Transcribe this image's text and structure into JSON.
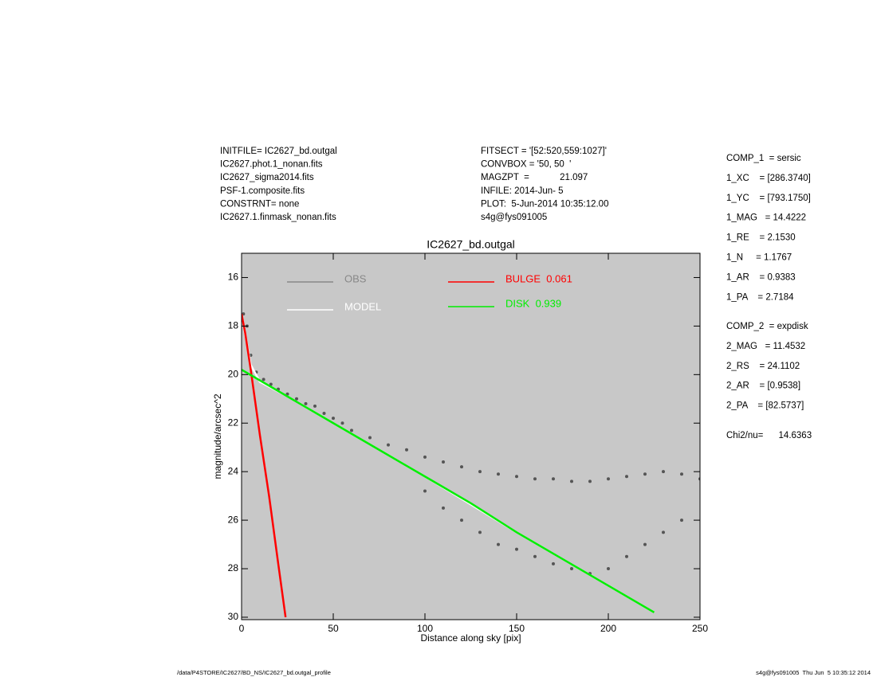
{
  "header": {
    "left": [
      "INITFILE= IC2627_bd.outgal",
      "IC2627.phot.1_nonan.fits",
      "IC2627_sigma2014.fits",
      "PSF-1.composite.fits",
      "CONSTRNT= none",
      "IC2627.1.finmask_nonan.fits"
    ],
    "middle": [
      "FITSECT = '[52:520,559:1027]'",
      "CONVBOX = '50, 50  '",
      "MAGZPT  =            21.097",
      "INFILE: 2014-Jun- 5",
      "PLOT:  5-Jun-2014 10:35:12.00",
      "s4g@fys091005"
    ]
  },
  "params": {
    "comp1": [
      "COMP_1  = sersic",
      "1_XC    = [286.3740]",
      "1_YC    = [793.1750]",
      "1_MAG   = 14.4222",
      "1_RE    = 2.1530",
      "1_N     = 1.1767",
      "1_AR    = 0.9383",
      "1_PA    = 2.7184"
    ],
    "comp2": [
      "COMP_2  = expdisk",
      "2_MAG   = 11.4532",
      "2_RS    = 24.1102",
      "2_AR    = [0.9538]",
      "2_PA    = [82.5737]"
    ],
    "chi2": "Chi2/nu=      14.6363"
  },
  "footer": {
    "left": "/data/P4STORE/IC2627/BD_NS/IC2627_bd.outgal_profile",
    "right": "s4g@fys091005  Thu Jun  5 10:35:12 2014"
  },
  "chart_data": {
    "type": "scatter",
    "title": "IC2627_bd.outgal",
    "x_label": "Distance along sky [pix]",
    "y_label": "magnitude/arcsec^2",
    "xlim": [
      0,
      250
    ],
    "ylim": [
      15,
      30.1
    ],
    "y_inverted": true,
    "xticks": [
      0,
      50,
      100,
      150,
      200,
      250
    ],
    "yticks": [
      16,
      18,
      20,
      22,
      24,
      26,
      28,
      30
    ],
    "background": "#c8c8c8",
    "series": [
      {
        "name": "OBS",
        "color": "#555555",
        "mode": "markers",
        "x": [
          1,
          3,
          5,
          8,
          12,
          16,
          20,
          25,
          30,
          35,
          40,
          45,
          50,
          55,
          60,
          70,
          80,
          90,
          100,
          110,
          120,
          130,
          140,
          150,
          160,
          170,
          180,
          190,
          200,
          210,
          220,
          230,
          240,
          250,
          100,
          110,
          120,
          130,
          140,
          150,
          160,
          170,
          180,
          190,
          200,
          210,
          220,
          230,
          240
        ],
        "values": [
          17.5,
          18.0,
          19.2,
          19.9,
          20.2,
          20.4,
          20.6,
          20.8,
          21.0,
          21.2,
          21.3,
          21.6,
          21.8,
          22.0,
          22.3,
          22.6,
          22.9,
          23.1,
          23.4,
          23.6,
          23.8,
          24.0,
          24.1,
          24.2,
          24.3,
          24.3,
          24.4,
          24.4,
          24.3,
          24.2,
          24.1,
          24.0,
          24.1,
          24.3,
          24.8,
          25.5,
          26.0,
          26.5,
          27.0,
          27.2,
          27.5,
          27.8,
          28.0,
          28.2,
          28.0,
          27.5,
          27.0,
          26.5,
          26.0
        ]
      },
      {
        "name": "MODEL",
        "color": "#ffffff",
        "mode": "lines",
        "x": [
          0,
          5,
          10,
          25,
          50,
          100,
          150,
          200,
          225
        ],
        "values": [
          17.5,
          19.6,
          20.3,
          20.9,
          22.0,
          24.2,
          26.5,
          28.7,
          29.8
        ]
      },
      {
        "name": "BULGE  0.061",
        "color": "#ff0000",
        "mode": "lines",
        "x": [
          0,
          2,
          5,
          10,
          15,
          20,
          24
        ],
        "values": [
          17.5,
          18.3,
          19.8,
          22.5,
          25.0,
          27.8,
          30.0
        ]
      },
      {
        "name": "DISK  0.939",
        "color": "#00ee00",
        "mode": "lines",
        "x": [
          0,
          25,
          50,
          75,
          100,
          125,
          150,
          175,
          200,
          225
        ],
        "values": [
          19.8,
          20.9,
          22.0,
          23.1,
          24.2,
          25.3,
          26.5,
          27.6,
          28.7,
          29.8
        ]
      }
    ]
  }
}
